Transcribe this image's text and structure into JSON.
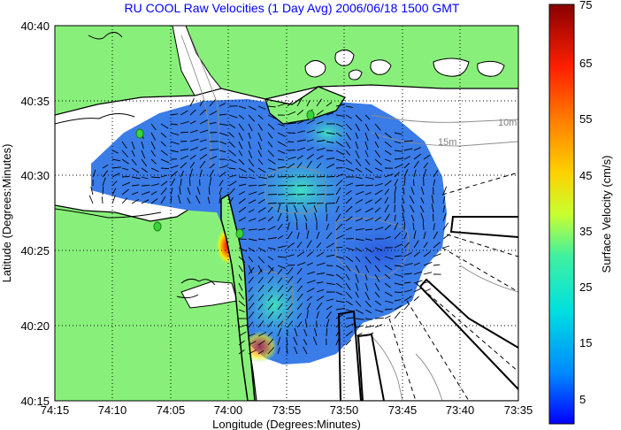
{
  "title": "RU COOL Raw Velocities (1 Day Avg) 2006/06/18 1500 GMT",
  "xlabel": "Longitude (Degrees:Minutes)",
  "ylabel": "Latitude (Degrees:Minutes)",
  "colorbar_label": "Surface Velocity (cm/s)",
  "x_ticks": [
    "74:15",
    "74:10",
    "74:05",
    "74:00",
    "73:55",
    "73:50",
    "73:45",
    "73:40",
    "73:35"
  ],
  "y_ticks": [
    "40:40",
    "40:35",
    "40:30",
    "40:25",
    "40:20",
    "40:15"
  ],
  "colorbar_ticks": [
    "75",
    "65",
    "55",
    "45",
    "35",
    "25",
    "15",
    "5"
  ],
  "contour_labels": [
    "10m",
    "15m"
  ],
  "colors": {
    "land": "#88f07a",
    "water": "#ffffff",
    "title": "#0000ff",
    "velocity_field": "#3a7ce8"
  },
  "colorbar_range": [
    0,
    75
  ],
  "grid": true
}
